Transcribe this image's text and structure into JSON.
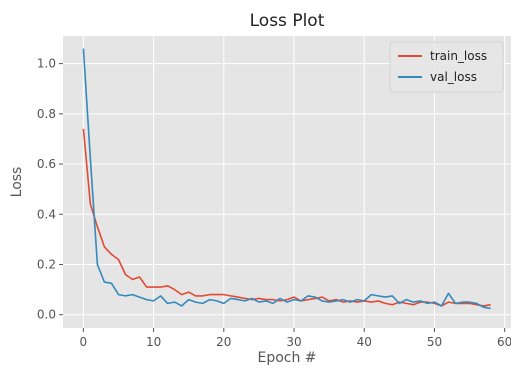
{
  "chart_data": {
    "type": "line",
    "title": "Loss Plot",
    "xlabel": "Epoch #",
    "ylabel": "Loss",
    "xlim": [
      -2.9,
      60.9
    ],
    "ylim": [
      -0.053,
      1.11
    ],
    "xticks": [
      0,
      10,
      20,
      30,
      40,
      50,
      60
    ],
    "xtick_labels": [
      "0",
      "10",
      "20",
      "30",
      "40",
      "50",
      "60"
    ],
    "yticks": [
      0.0,
      0.2,
      0.4,
      0.6,
      0.8,
      1.0
    ],
    "ytick_labels": [
      "0.0",
      "0.2",
      "0.4",
      "0.6",
      "0.8",
      "1.0"
    ],
    "grid": true,
    "legend_position": "top-right",
    "style": {
      "plot_bg": "#e5e5e5",
      "grid_color": "#ffffff",
      "text_color": "#555555",
      "title_color": "#222222"
    },
    "x": [
      0,
      1,
      2,
      3,
      4,
      5,
      6,
      7,
      8,
      9,
      10,
      11,
      12,
      13,
      14,
      15,
      16,
      17,
      18,
      19,
      20,
      21,
      22,
      23,
      24,
      25,
      26,
      27,
      28,
      29,
      30,
      31,
      32,
      33,
      34,
      35,
      36,
      37,
      38,
      39,
      40,
      41,
      42,
      43,
      44,
      45,
      46,
      47,
      48,
      49,
      50,
      51,
      52,
      53,
      54,
      55,
      56,
      57,
      58
    ],
    "series": [
      {
        "name": "train_loss",
        "color": "#e24a33",
        "values": [
          0.74,
          0.44,
          0.35,
          0.27,
          0.24,
          0.22,
          0.16,
          0.14,
          0.15,
          0.11,
          0.11,
          0.11,
          0.115,
          0.1,
          0.08,
          0.09,
          0.075,
          0.075,
          0.08,
          0.08,
          0.08,
          0.075,
          0.07,
          0.065,
          0.06,
          0.065,
          0.06,
          0.06,
          0.055,
          0.06,
          0.07,
          0.055,
          0.06,
          0.065,
          0.07,
          0.055,
          0.06,
          0.05,
          0.055,
          0.05,
          0.055,
          0.05,
          0.055,
          0.045,
          0.04,
          0.05,
          0.045,
          0.04,
          0.05,
          0.05,
          0.045,
          0.035,
          0.05,
          0.045,
          0.045,
          0.045,
          0.04,
          0.035,
          0.04
        ]
      },
      {
        "name": "val_loss",
        "color": "#348abd",
        "values": [
          1.06,
          0.62,
          0.2,
          0.13,
          0.125,
          0.08,
          0.075,
          0.08,
          0.07,
          0.06,
          0.055,
          0.075,
          0.045,
          0.05,
          0.035,
          0.06,
          0.05,
          0.045,
          0.06,
          0.055,
          0.045,
          0.065,
          0.06,
          0.055,
          0.065,
          0.05,
          0.055,
          0.045,
          0.065,
          0.05,
          0.06,
          0.055,
          0.075,
          0.07,
          0.055,
          0.05,
          0.055,
          0.06,
          0.05,
          0.06,
          0.055,
          0.08,
          0.075,
          0.07,
          0.075,
          0.045,
          0.06,
          0.05,
          0.055,
          0.045,
          0.05,
          0.035,
          0.085,
          0.045,
          0.05,
          0.05,
          0.045,
          0.03,
          0.025
        ]
      }
    ]
  }
}
